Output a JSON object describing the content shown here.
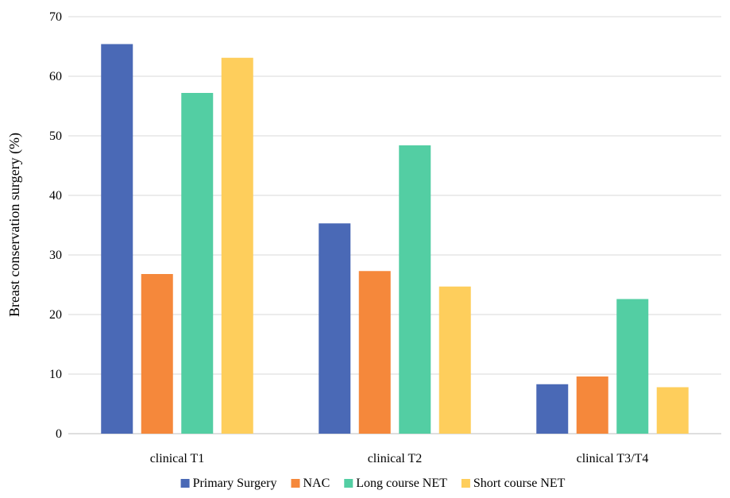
{
  "chart_data": {
    "type": "bar",
    "title": "",
    "xlabel": "",
    "ylabel": "Breast conservation surgery (%)",
    "ylim": [
      0,
      70
    ],
    "yticks": [
      0,
      10,
      20,
      30,
      40,
      50,
      60,
      70
    ],
    "grid": true,
    "legend_position": "bottom",
    "categories": [
      "clinical T1",
      "clinical T2",
      "clinical T3/T4"
    ],
    "series": [
      {
        "name": "Primary Surgery",
        "color": "#4a69b6",
        "values": [
          65.4,
          35.3,
          8.3
        ]
      },
      {
        "name": "NAC",
        "color": "#f5883b",
        "values": [
          26.8,
          27.3,
          9.6
        ]
      },
      {
        "name": "Long course NET",
        "color": "#53cea3",
        "values": [
          57.2,
          48.4,
          22.6
        ]
      },
      {
        "name": "Short course NET",
        "color": "#fece5c",
        "values": [
          63.1,
          24.7,
          7.8
        ]
      }
    ]
  }
}
